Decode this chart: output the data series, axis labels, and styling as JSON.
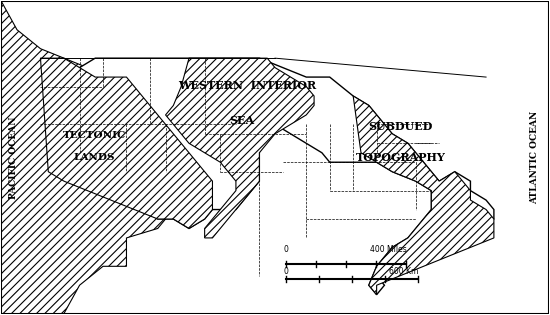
{
  "title": "",
  "background_color": "#ffffff",
  "border_color": "#000000",
  "hatch_color": "#555555",
  "labels": {
    "western_interior_sea_1": "WESTERN  INTERIOR",
    "western_interior_sea_2": "SEA",
    "tectonic_lands_1": "TECTONIC",
    "tectonic_lands_2": "LANDS",
    "subdued_1": "SUBDUED",
    "topography_1": "TOPOGRAPHY",
    "pacific_ocean": "PACIFIC OCEAN",
    "atlantic_ocean": "ATLANTIC OCEAN",
    "scale_miles": "400 Miles",
    "scale_km": "600 Km",
    "scale_zero": "0",
    "scale_zero2": "0"
  },
  "map_extent": [
    -130,
    -60,
    22,
    55
  ],
  "sea_color": "#dddddd",
  "land_color": "#ffffff",
  "hatch_pattern": "///",
  "hatch_pattern2": "\\\\\\\\"
}
